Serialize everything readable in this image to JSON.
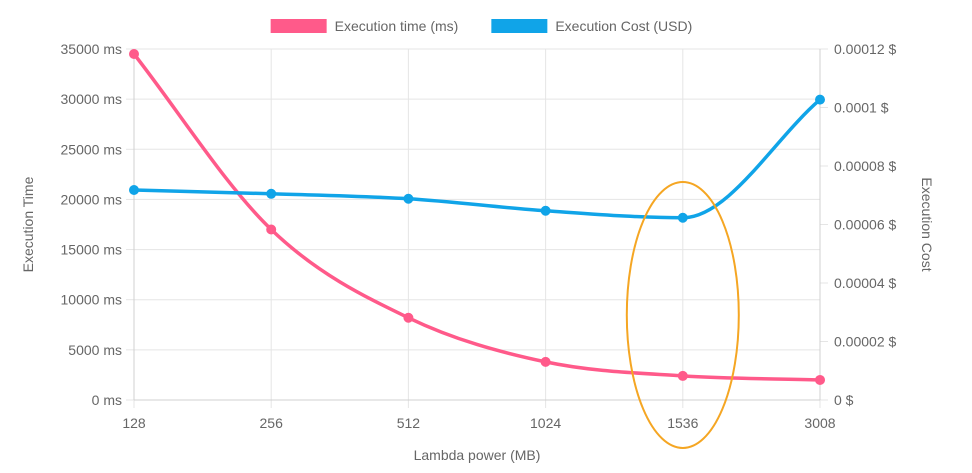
{
  "chart_data": {
    "type": "line",
    "title": "",
    "xlabel": "Lambda power (MB)",
    "ylabel_left": "Execution Time",
    "ylabel_right": "Execution Cost",
    "categories": [
      "128",
      "256",
      "512",
      "1024",
      "1536",
      "3008"
    ],
    "left_axis": {
      "min": 0,
      "max": 35000,
      "step": 5000,
      "suffix": " ms",
      "ticks": [
        "0 ms",
        "5000 ms",
        "10000 ms",
        "15000 ms",
        "20000 ms",
        "25000 ms",
        "30000 ms",
        "35000 ms"
      ]
    },
    "right_axis": {
      "min": 0,
      "max": 0.00012,
      "step": 2e-05,
      "suffix": " $",
      "ticks": [
        "0 $",
        "0.00002 $",
        "0.00004 $",
        "0.00006 $",
        "0.00008 $",
        "0.0001 $",
        "0.00012 $"
      ]
    },
    "series": [
      {
        "name": "Execution time (ms)",
        "axis": "left",
        "color": "#ff5a8a",
        "values": [
          34500,
          17000,
          8200,
          3800,
          2400,
          2000
        ]
      },
      {
        "name": "Execution Cost (USD)",
        "axis": "right",
        "color": "#10a4e8",
        "values": [
          7.18e-05,
          7.05e-05,
          6.88e-05,
          6.47e-05,
          6.23e-05,
          0.0001027
        ]
      }
    ],
    "legend_position": "top",
    "grid": true,
    "annotation": {
      "shape": "ellipse",
      "color": "#f5a623",
      "category": "1536"
    }
  }
}
